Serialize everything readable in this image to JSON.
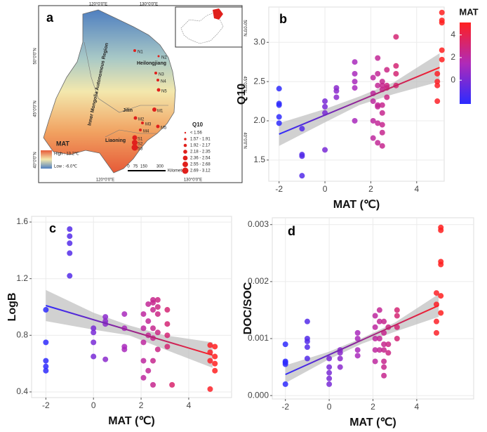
{
  "map": {
    "panel_label": "a",
    "lon_top": [
      "120°0'0\"E",
      "130°0'0\"E"
    ],
    "lon_bottom": [
      "120°0'0\"E",
      "130°0'0\"E"
    ],
    "lat_left": [
      "50°0'0\"N",
      "45°0'0\"N",
      "40°0'0\"N"
    ],
    "lat_right": [
      "50°0'0\"N",
      "45°0'0\"N",
      "40°0'0\"N"
    ],
    "regions": [
      "Heilongjiang",
      "Jilin",
      "Liaoning",
      "Inner Mongolia Autonomous Region"
    ],
    "sites": [
      "N1",
      "N2",
      "N3",
      "N4",
      "N5",
      "M1",
      "M2",
      "M3",
      "M4",
      "M5",
      "S1",
      "S2",
      "S3"
    ],
    "legend": {
      "title": "MAT",
      "high": "High : 13.2℃",
      "low": "Low : -6.0℃"
    },
    "q10_legend": {
      "title": "Q10",
      "classes": [
        "< 1.56",
        "1.57 - 1.91",
        "1.92 - 2.17",
        "2.18 - 2.35",
        "2.36 - 2.54",
        "2.55 - 2.68",
        "2.69 - 3.12"
      ]
    },
    "scale": {
      "labels": [
        "0",
        "75",
        "150",
        "300"
      ],
      "unit": "Kilometers"
    }
  },
  "colorscale": {
    "title": "MAT",
    "colors": [
      "#2b2bff",
      "#b02ab8",
      "#ff2020"
    ],
    "lim": [
      -2.1,
      5.1
    ],
    "ticks": [
      0,
      2,
      4
    ]
  },
  "chart_data": [
    {
      "type": "scatter",
      "label": "b",
      "xlabel": "MAT (℃)",
      "ylabel": "Q10",
      "xlim": [
        -2.45,
        5.2
      ],
      "xticks": [
        -2,
        0,
        2,
        4
      ],
      "ylim": [
        1.23,
        3.45
      ],
      "yticks": [
        1.5,
        {
          "value": 2,
          "label": "2.0"
        },
        2.5,
        {
          "value": 3,
          "label": "3.0"
        }
      ],
      "grid": true,
      "x": [
        -2,
        -2,
        -2,
        -2,
        -2,
        -1,
        -1,
        -1,
        -1,
        0,
        0,
        0,
        0,
        0.5,
        0.5,
        0.5,
        1.3,
        1.3,
        1.3,
        1.3,
        1.3,
        2.1,
        2.1,
        2.1,
        2.1,
        2.1,
        2.3,
        2.3,
        2.3,
        2.3,
        2.3,
        2.3,
        2.3,
        2.5,
        2.5,
        2.5,
        2.5,
        2.5,
        2.5,
        2.5,
        2.5,
        2.7,
        2.7,
        2.7,
        2.7,
        3.1,
        3.1,
        3.1,
        3.1,
        4.9,
        4.9,
        4.9,
        4.9,
        5.1,
        5.1,
        5.1,
        5.1,
        5.1
      ],
      "values": [
        2.41,
        2.22,
        2.2,
        2.05,
        1.97,
        1.9,
        1.57,
        1.55,
        1.3,
        2.25,
        2.18,
        2.1,
        1.63,
        2.42,
        2.38,
        2.3,
        2.75,
        2.6,
        2.5,
        2.42,
        2.0,
        2.55,
        2.35,
        2.25,
        2.0,
        1.78,
        2.8,
        2.6,
        2.45,
        2.2,
        2.18,
        1.97,
        1.72,
        2.5,
        2.45,
        2.4,
        2.2,
        2.1,
        1.95,
        1.85,
        1.68,
        2.65,
        2.45,
        2.42,
        2.3,
        3.07,
        2.7,
        2.6,
        2.45,
        2.5,
        2.45,
        2.25,
        2.6,
        3.38,
        3.28,
        3.25,
        2.9,
        2.78
      ],
      "fit": {
        "x": [
          -2,
          5
        ],
        "y": [
          1.83,
          2.68
        ]
      },
      "band": {
        "x": [
          -2,
          0,
          1.5,
          3,
          5
        ],
        "upper": [
          1.97,
          2.15,
          2.31,
          2.49,
          2.86
        ],
        "lower": [
          1.68,
          1.98,
          2.2,
          2.34,
          2.5
        ]
      }
    },
    {
      "type": "scatter",
      "label": "c",
      "xlabel": "MAT (℃)",
      "ylabel": "LogB",
      "xlim": [
        -2.6,
        5.8
      ],
      "xticks": [
        -2,
        0,
        2,
        4
      ],
      "ylim": [
        0.36,
        1.64
      ],
      "yticks": [
        0.4,
        0.8,
        1.2,
        1.6
      ],
      "grid": true,
      "x": [
        -2,
        -2,
        -2,
        -2,
        -2,
        -1,
        -1,
        -1,
        -1,
        -1,
        0,
        0,
        0,
        0,
        0.5,
        0.5,
        0.5,
        0.5,
        1.3,
        1.3,
        1.3,
        1.3,
        2.1,
        2.1,
        2.1,
        2.1,
        2.1,
        2.3,
        2.3,
        2.3,
        2.3,
        2.5,
        2.5,
        2.5,
        2.5,
        2.5,
        2.5,
        2.5,
        2.7,
        2.7,
        2.7,
        2.7,
        2.7,
        3.1,
        3.1,
        3.1,
        3.1,
        3.3,
        4.9,
        4.9,
        4.9,
        4.9,
        5.1,
        5.1,
        5.1,
        5.1
      ],
      "values": [
        0.98,
        0.75,
        0.62,
        0.58,
        0.55,
        1.55,
        1.5,
        1.45,
        1.38,
        1.22,
        0.85,
        0.82,
        0.75,
        0.65,
        0.93,
        0.9,
        0.88,
        0.63,
        0.95,
        0.85,
        0.72,
        0.7,
        0.95,
        0.85,
        0.75,
        0.62,
        0.5,
        1.02,
        0.9,
        0.8,
        0.55,
        1.05,
        1.03,
        0.98,
        0.85,
        0.78,
        0.62,
        0.45,
        1.05,
        1.0,
        0.95,
        0.82,
        0.7,
        0.98,
        0.88,
        0.8,
        0.72,
        0.45,
        0.73,
        0.68,
        0.62,
        0.42,
        0.72,
        0.65,
        0.6,
        0.55
      ],
      "fit": {
        "x": [
          -2,
          5
        ],
        "y": [
          1.01,
          0.66
        ]
      },
      "band": {
        "x": [
          -2,
          0,
          1.5,
          3,
          5
        ],
        "upper": [
          1.12,
          0.96,
          0.87,
          0.8,
          0.75
        ],
        "lower": [
          0.9,
          0.84,
          0.8,
          0.7,
          0.57
        ]
      }
    },
    {
      "type": "scatter",
      "label": "d",
      "xlabel": "MAT (℃)",
      "ylabel": "DOC/SOC",
      "xlim": [
        -2.6,
        6.6
      ],
      "xticks": [
        -2,
        0,
        2,
        4
      ],
      "ylim": [
        -6e-05,
        0.00312
      ],
      "yticks": [
        {
          "value": 0,
          "label": "0.000"
        },
        {
          "value": 0.001,
          "label": "0.001"
        },
        {
          "value": 0.002,
          "label": "0.002"
        },
        {
          "value": 0.003,
          "label": "0.003"
        }
      ],
      "grid": true,
      "x": [
        -2,
        -2,
        -2,
        -2,
        -2,
        -1,
        -1,
        -1,
        -1,
        -1,
        0,
        0,
        0,
        0,
        0,
        0.5,
        0.5,
        0.5,
        0.5,
        1.3,
        1.3,
        1.3,
        1.3,
        2.1,
        2.1,
        2.1,
        2.1,
        2.1,
        2.3,
        2.3,
        2.3,
        2.3,
        2.5,
        2.5,
        2.5,
        2.5,
        2.5,
        2.5,
        2.5,
        2.7,
        2.7,
        2.7,
        3.1,
        3.1,
        3.1,
        3.1,
        4.9,
        4.9,
        4.9,
        4.9,
        5.1,
        5.1,
        5.1,
        5.1,
        5.1,
        5.1
      ],
      "values": [
        0.0009,
        0.0006,
        0.00058,
        0.00055,
        0.0002,
        0.0013,
        0.001,
        0.00095,
        0.00085,
        0.00065,
        0.00065,
        0.0005,
        0.0004,
        0.0003,
        0.0002,
        0.0008,
        0.00075,
        0.00065,
        0.0005,
        0.0011,
        0.001,
        0.0008,
        0.0007,
        0.0014,
        0.0012,
        0.001,
        0.0008,
        0.0006,
        0.0015,
        0.0013,
        0.001,
        0.0008,
        0.0013,
        0.0011,
        0.0009,
        0.0008,
        0.0006,
        0.0005,
        0.00035,
        0.0012,
        0.0009,
        0.00075,
        0.0015,
        0.0014,
        0.0012,
        0.001,
        0.0018,
        0.0016,
        0.0013,
        0.0011,
        0.00295,
        0.0029,
        0.00235,
        0.0023,
        0.00175,
        0.00145
      ],
      "fit": {
        "x": [
          -2,
          5
        ],
        "y": [
          0.00037,
          0.00158
        ]
      },
      "band": {
        "x": [
          -2,
          0,
          1.5,
          3,
          5
        ],
        "upper": [
          0.00053,
          0.00077,
          0.00101,
          0.00128,
          0.00178
        ],
        "lower": [
          0.00022,
          0.00064,
          0.00091,
          0.00112,
          0.00138
        ]
      }
    }
  ]
}
